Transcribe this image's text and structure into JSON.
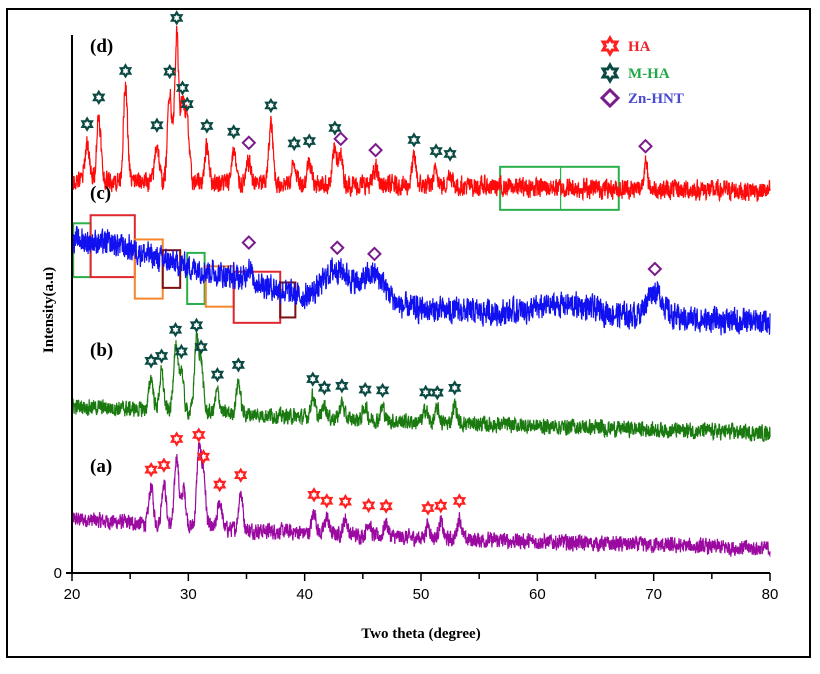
{
  "chart_data": {
    "type": "line",
    "title": "",
    "xlabel": "Two theta (degree)",
    "ylabel": "Intensity(a.u)",
    "xlim": [
      20,
      80
    ],
    "ylim": [
      0,
      100
    ],
    "xticks": [
      20,
      30,
      40,
      50,
      60,
      70,
      80
    ],
    "yticks": [
      0
    ],
    "grid": false,
    "legend": {
      "placement": "top-right",
      "entries": [
        {
          "label": "HA",
          "marker": "star-hexagram",
          "color": "#ff2020",
          "text_color": "#e8232a"
        },
        {
          "label": "M-HA",
          "marker": "star-hexagram",
          "color": "#0b4a43",
          "text_color": "#22a84a"
        },
        {
          "label": "Zn-HNT",
          "marker": "diamond",
          "color": "#7a1a8c",
          "text_color": "#4a4ad0"
        }
      ]
    },
    "series": [
      {
        "name": "(a)",
        "panel_label": "(a)",
        "color": "#9b0aa0",
        "baseline": [
          [
            20,
            10
          ],
          [
            35,
            8
          ],
          [
            50,
            6.5
          ],
          [
            80,
            4.5
          ]
        ],
        "noise": 1.6,
        "peaks": [
          {
            "x": 26.8,
            "h": 7,
            "marker": "HA"
          },
          {
            "x": 27.9,
            "h": 8,
            "marker": "HA"
          },
          {
            "x": 29.0,
            "h": 13,
            "marker": "HA"
          },
          {
            "x": 29.6,
            "h": 7
          },
          {
            "x": 30.9,
            "h": 14,
            "marker": "HA"
          },
          {
            "x": 31.3,
            "h": 10,
            "marker": "HA"
          },
          {
            "x": 32.7,
            "h": 5,
            "marker": "HA"
          },
          {
            "x": 34.5,
            "h": 7,
            "marker": "HA"
          },
          {
            "x": 40.8,
            "h": 4,
            "marker": "HA"
          },
          {
            "x": 41.9,
            "h": 3,
            "marker": "HA"
          },
          {
            "x": 43.5,
            "h": 3,
            "marker": "HA"
          },
          {
            "x": 45.5,
            "h": 2.5,
            "marker": "HA"
          },
          {
            "x": 47.0,
            "h": 2.5,
            "marker": "HA"
          },
          {
            "x": 50.6,
            "h": 2.5,
            "marker": "HA"
          },
          {
            "x": 51.7,
            "h": 3,
            "marker": "HA"
          },
          {
            "x": 53.3,
            "h": 4,
            "marker": "HA"
          }
        ]
      },
      {
        "name": "(b)",
        "panel_label": "(b)",
        "color": "#1a7a10",
        "baseline": [
          [
            20,
            31
          ],
          [
            35,
            29.5
          ],
          [
            50,
            28
          ],
          [
            80,
            26
          ]
        ],
        "noise": 1.6,
        "peaks": [
          {
            "x": 26.8,
            "h": 6,
            "marker": "M-HA"
          },
          {
            "x": 27.7,
            "h": 7,
            "marker": "M-HA"
          },
          {
            "x": 28.9,
            "h": 12,
            "marker": "M-HA"
          },
          {
            "x": 29.4,
            "h": 8,
            "marker": "M-HA"
          },
          {
            "x": 30.7,
            "h": 13,
            "marker": "M-HA"
          },
          {
            "x": 31.1,
            "h": 9,
            "marker": "M-HA"
          },
          {
            "x": 32.5,
            "h": 4,
            "marker": "M-HA"
          },
          {
            "x": 34.3,
            "h": 6,
            "marker": "M-HA"
          },
          {
            "x": 40.7,
            "h": 4,
            "marker": "M-HA"
          },
          {
            "x": 41.7,
            "h": 2.5,
            "marker": "M-HA"
          },
          {
            "x": 43.2,
            "h": 3,
            "marker": "M-HA"
          },
          {
            "x": 45.2,
            "h": 2.5,
            "marker": "M-HA"
          },
          {
            "x": 46.7,
            "h": 2.5,
            "marker": "M-HA"
          },
          {
            "x": 50.4,
            "h": 2.5,
            "marker": "M-HA"
          },
          {
            "x": 51.4,
            "h": 2.5,
            "marker": "M-HA"
          },
          {
            "x": 52.9,
            "h": 3.5,
            "marker": "M-HA"
          }
        ]
      },
      {
        "name": "(c)",
        "panel_label": "(c)",
        "color": "#1010f0",
        "baseline": [
          [
            20,
            62
          ],
          [
            24,
            61
          ],
          [
            28,
            58
          ],
          [
            32,
            56
          ],
          [
            36,
            54
          ],
          [
            40,
            51
          ],
          [
            50,
            49
          ],
          [
            60,
            48
          ],
          [
            70,
            47.5
          ],
          [
            80,
            46.5
          ]
        ],
        "noise": 2.6,
        "peaks": [
          {
            "x": 35.2,
            "h": 3,
            "marker": "Zn-HNT"
          },
          {
            "x": 42.8,
            "h": 6,
            "w": 1.2,
            "marker": "Zn-HNT"
          },
          {
            "x": 46.0,
            "h": 5.5,
            "w": 1.0,
            "marker": "Zn-HNT"
          },
          {
            "x": 62.5,
            "h": 2,
            "w": 2.5
          },
          {
            "x": 70.1,
            "h": 5,
            "w": 0.7,
            "marker": "Zn-HNT"
          }
        ],
        "annotation_boxes": [
          {
            "x0": 20.1,
            "x1": 21.6,
            "y0": 55,
            "y1": 65,
            "color": "#2ab04a"
          },
          {
            "x0": 21.6,
            "x1": 25.4,
            "y0": 55,
            "y1": 66.5,
            "color": "#e0262e"
          },
          {
            "x0": 25.4,
            "x1": 27.8,
            "y0": 51,
            "y1": 62,
            "color": "#f7862a"
          },
          {
            "x0": 27.8,
            "x1": 29.3,
            "y0": 53,
            "y1": 60,
            "color": "#7a1010"
          },
          {
            "x0": 29.9,
            "x1": 31.4,
            "y0": 50,
            "y1": 59.5,
            "color": "#2ab04a"
          },
          {
            "x0": 31.5,
            "x1": 33.9,
            "y0": 49.5,
            "y1": 57,
            "color": "#f7862a"
          },
          {
            "x0": 33.9,
            "x1": 37.9,
            "y0": 46.5,
            "y1": 56,
            "color": "#e0262e"
          },
          {
            "x0": 37.9,
            "x1": 39.2,
            "y0": 47.5,
            "y1": 54,
            "color": "#7a1010"
          }
        ]
      },
      {
        "name": "(d)",
        "panel_label": "(d)",
        "color": "#ff0a0a",
        "baseline": [
          [
            20,
            73
          ],
          [
            35,
            72.5
          ],
          [
            50,
            72
          ],
          [
            80,
            71
          ]
        ],
        "noise": 2.0,
        "peaks": [
          {
            "x": 21.3,
            "h": 7,
            "marker": "M-HA"
          },
          {
            "x": 22.3,
            "h": 12,
            "marker": "M-HA"
          },
          {
            "x": 24.6,
            "h": 17,
            "marker": "M-HA"
          },
          {
            "x": 27.3,
            "h": 7,
            "marker": "M-HA"
          },
          {
            "x": 28.4,
            "h": 17,
            "marker": "M-HA"
          },
          {
            "x": 29.0,
            "h": 27,
            "marker": "M-HA"
          },
          {
            "x": 29.5,
            "h": 14,
            "marker": "M-HA"
          },
          {
            "x": 29.9,
            "h": 11,
            "marker": "M-HA"
          },
          {
            "x": 31.6,
            "h": 7,
            "marker": "M-HA"
          },
          {
            "x": 33.9,
            "h": 6,
            "marker": "M-HA"
          },
          {
            "x": 35.2,
            "h": 4,
            "marker": "Zn-HNT"
          },
          {
            "x": 37.1,
            "h": 11,
            "marker": "M-HA"
          },
          {
            "x": 39.1,
            "h": 4,
            "marker": "M-HA"
          },
          {
            "x": 40.4,
            "h": 4.5,
            "marker": "M-HA"
          },
          {
            "x": 42.6,
            "h": 7,
            "marker": "M-HA"
          },
          {
            "x": 43.1,
            "h": 5,
            "marker": "Zn-HNT"
          },
          {
            "x": 46.1,
            "h": 3,
            "marker": "Zn-HNT"
          },
          {
            "x": 49.4,
            "h": 5,
            "marker": "M-HA"
          },
          {
            "x": 51.3,
            "h": 3,
            "marker": "M-HA"
          },
          {
            "x": 52.5,
            "h": 2.5,
            "marker": "M-HA"
          },
          {
            "x": 69.3,
            "h": 4.5,
            "marker": "Zn-HNT"
          }
        ],
        "annotation_boxes": [
          {
            "x0": 56.8,
            "x1": 67.0,
            "y0": 67.5,
            "y1": 75.5,
            "color": "#2ab04a",
            "divider_x": 62.0
          }
        ]
      }
    ]
  }
}
